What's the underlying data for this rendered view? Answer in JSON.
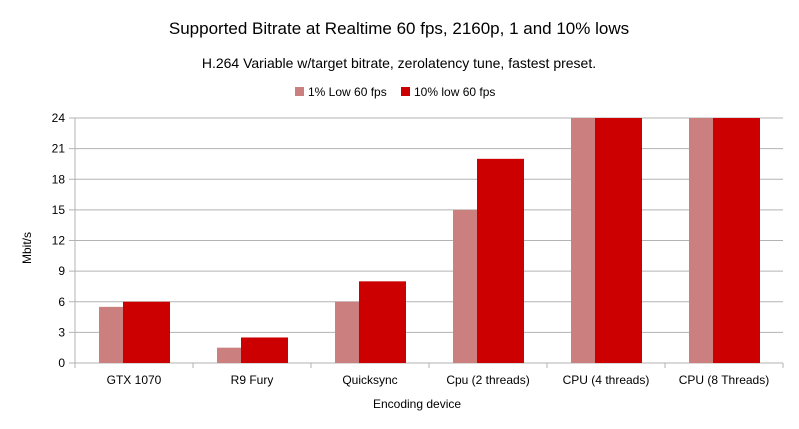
{
  "chart_data": {
    "type": "bar",
    "title": "Supported Bitrate at Realtime 60 fps, 2160p, 1 and 10% lows",
    "subtitle": "H.264 Variable w/target bitrate, zerolatency tune, fastest preset.",
    "xlabel": "Encoding device",
    "ylabel": "Mbit/s",
    "ylim": [
      0,
      24
    ],
    "yticks": [
      0,
      3,
      6,
      9,
      12,
      15,
      18,
      21,
      24
    ],
    "grid": true,
    "legend_placement": "top",
    "categories": [
      "GTX 1070",
      "R9 Fury",
      "Quicksync",
      "Cpu (2 threads)",
      "CPU (4 threads)",
      "CPU (8 Threads)"
    ],
    "series": [
      {
        "name": "1% Low 60 fps",
        "color": "#cc7f7f",
        "values": [
          5.5,
          1.5,
          6,
          15,
          24,
          24
        ]
      },
      {
        "name": "10% low 60 fps",
        "color": "#cc0000",
        "values": [
          6,
          2.5,
          8,
          20,
          24,
          24
        ]
      }
    ]
  }
}
